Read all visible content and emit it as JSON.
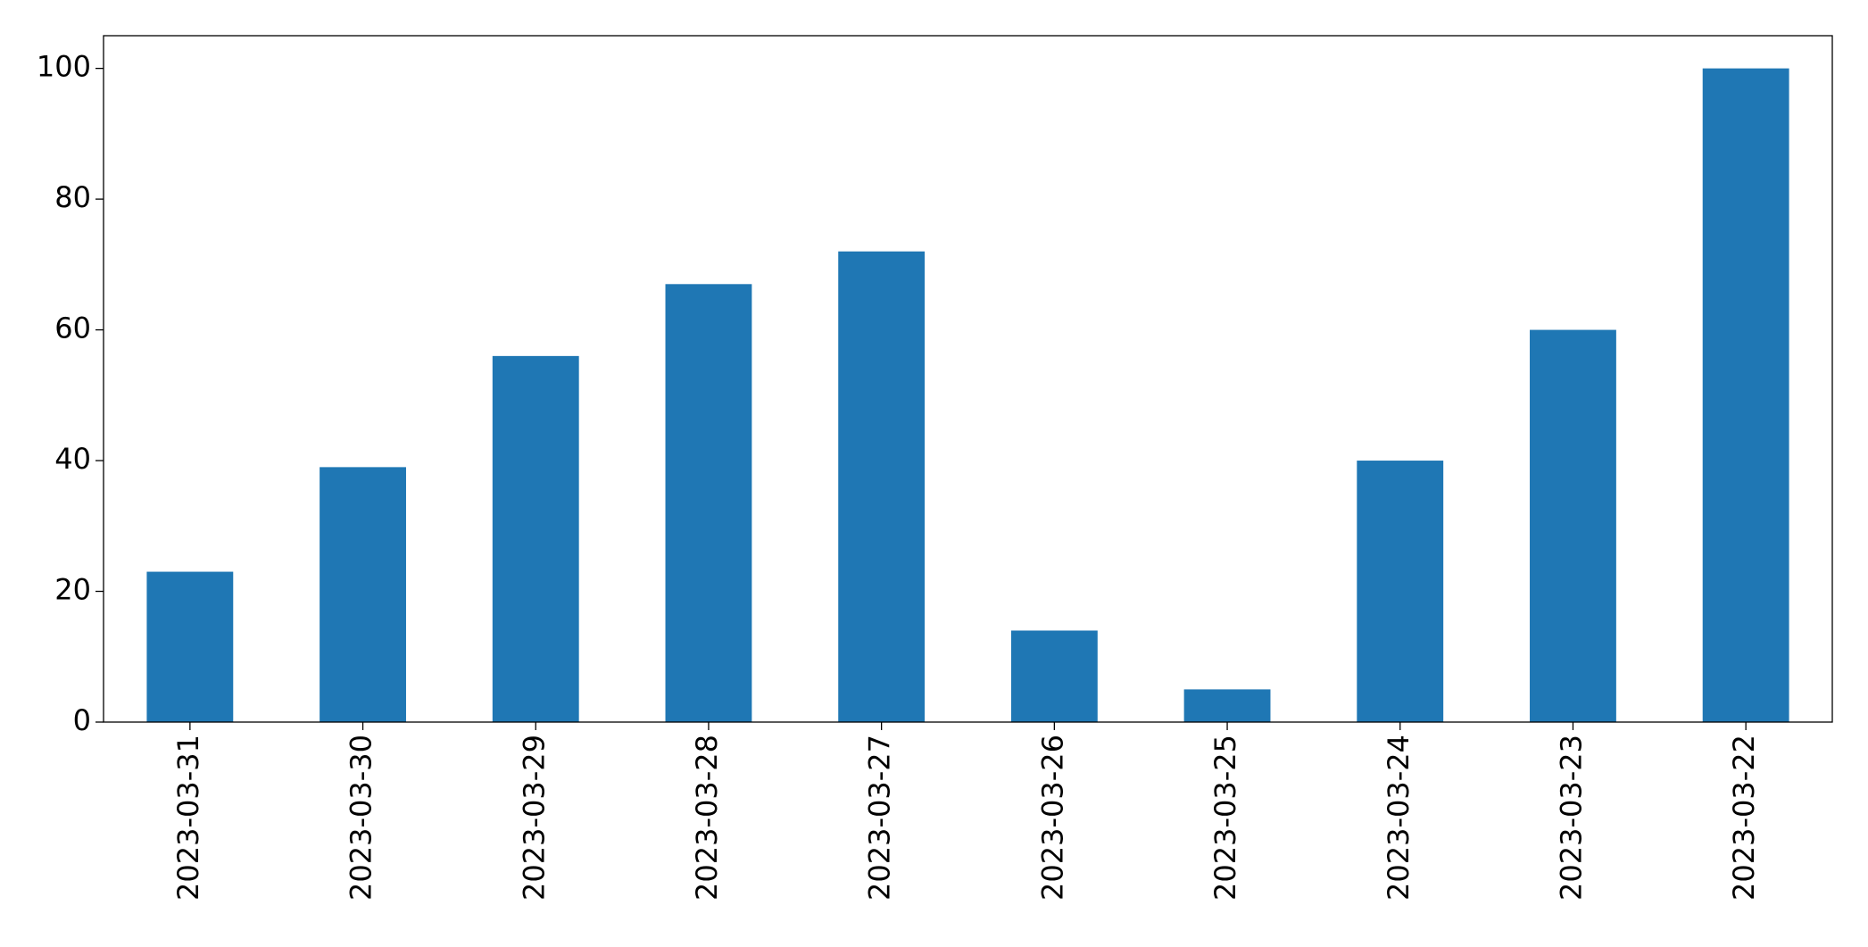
{
  "chart_data": {
    "type": "bar",
    "categories": [
      "2023-03-31",
      "2023-03-30",
      "2023-03-29",
      "2023-03-28",
      "2023-03-27",
      "2023-03-26",
      "2023-03-25",
      "2023-03-24",
      "2023-03-23",
      "2023-03-22"
    ],
    "values": [
      23,
      39,
      56,
      67,
      72,
      14,
      5,
      40,
      60,
      100
    ],
    "color": "#1f77b4",
    "ylim": [
      0,
      105
    ],
    "yticks": [
      0,
      20,
      40,
      60,
      80,
      100
    ],
    "grid": false
  }
}
